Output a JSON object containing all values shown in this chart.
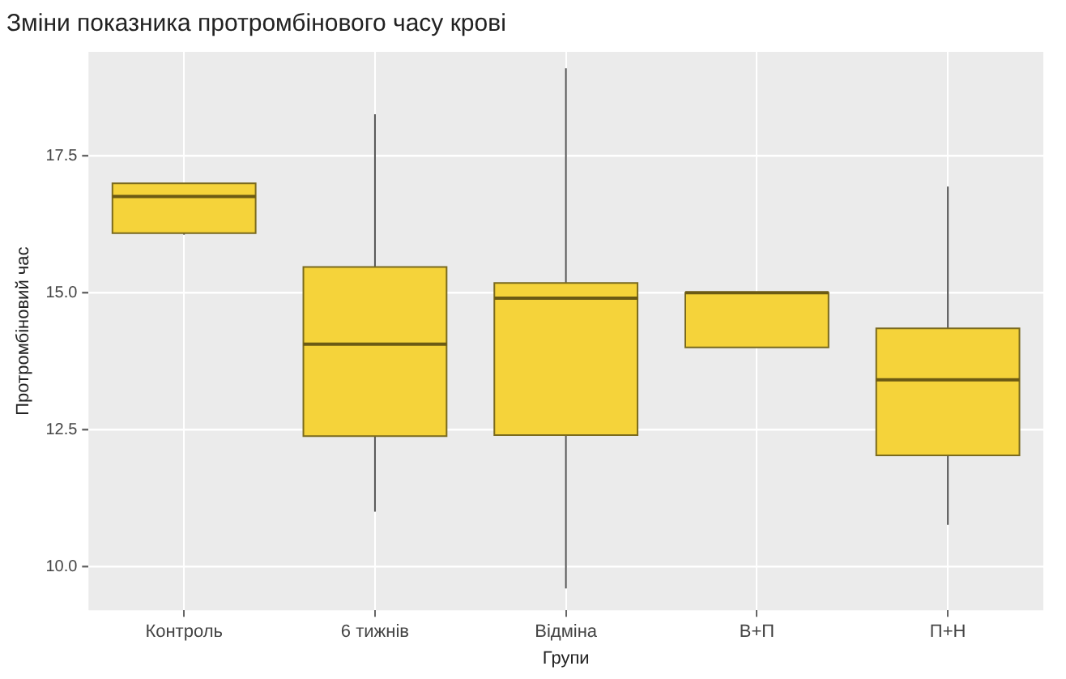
{
  "chart_data": {
    "type": "box",
    "title": "Зміни показника протромбінового часу крові",
    "xlabel": "Групи",
    "ylabel": "Протромбіновий час",
    "categories": [
      "Контроль",
      "6 тижнів",
      "Відміна",
      "В+П",
      "П+Н"
    ],
    "color": "#f5d33a",
    "boxes": [
      {
        "low": 16.06,
        "q1": 16.09,
        "median": 16.76,
        "q3": 17.0,
        "high": 17.0
      },
      {
        "low": 11.0,
        "q1": 12.38,
        "median": 14.06,
        "q3": 15.47,
        "high": 18.26
      },
      {
        "low": 9.6,
        "q1": 12.4,
        "median": 14.9,
        "q3": 15.18,
        "high": 19.1
      },
      {
        "low": 14.0,
        "q1": 14.0,
        "median": 15.0,
        "q3": 15.0,
        "high": 15.0
      },
      {
        "low": 10.76,
        "q1": 12.03,
        "median": 13.41,
        "q3": 14.35,
        "high": 16.94
      }
    ],
    "ylim": [
      9.2,
      19.4
    ],
    "yticks": [
      {
        "value": 10,
        "label": "10.0"
      },
      {
        "value": 12.5,
        "label": "12.5"
      },
      {
        "value": 15,
        "label": "15.0"
      },
      {
        "value": 17.5,
        "label": "17.5"
      }
    ],
    "grid": true,
    "legend": false
  }
}
